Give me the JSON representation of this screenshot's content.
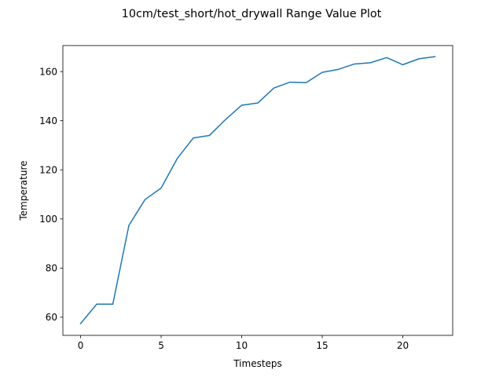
{
  "chart_data": {
    "type": "line",
    "title": "10cm/test_short/hot_drywall Range Value Plot",
    "xlabel": "Timesteps",
    "ylabel": "Temperature",
    "xlim": [
      -1.1,
      23.1
    ],
    "ylim": [
      52.6,
      170.6
    ],
    "xticks": [
      0,
      5,
      10,
      15,
      20
    ],
    "yticks": [
      60,
      80,
      100,
      120,
      140,
      160
    ],
    "grid": false,
    "legend": "none",
    "series": [
      {
        "color": "#1f77b4",
        "x": [
          0,
          1,
          2,
          3,
          4,
          5,
          6,
          7,
          8,
          9,
          10,
          11,
          12,
          13,
          14,
          15,
          16,
          17,
          18,
          19,
          20,
          21,
          22
        ],
        "y": [
          57.4,
          65.3,
          65.3,
          97.4,
          107.9,
          112.6,
          124.6,
          133.0,
          134.0,
          140.5,
          146.3,
          147.2,
          153.3,
          155.7,
          155.5,
          159.7,
          160.9,
          163.1,
          163.6,
          165.7,
          162.8,
          165.2,
          166.1
        ]
      }
    ]
  }
}
